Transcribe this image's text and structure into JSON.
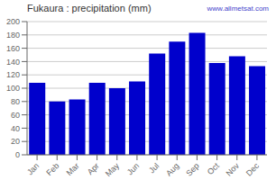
{
  "chart_data": {
    "type": "bar",
    "title": "Fukaura : precipitation (mm)",
    "annotation": "www.allmetsat.com",
    "categories": [
      "Jan",
      "Feb",
      "Mar",
      "Apr",
      "May",
      "Jun",
      "Jul",
      "Aug",
      "Sep",
      "Oct",
      "Nov",
      "Dec"
    ],
    "values": [
      108,
      80,
      83,
      108,
      100,
      110,
      152,
      170,
      183,
      138,
      148,
      133
    ],
    "color": "#0000CC",
    "ylim": [
      0,
      200
    ],
    "yticks": [
      0,
      20,
      40,
      60,
      80,
      100,
      120,
      140,
      160,
      180,
      200
    ],
    "grid": true
  }
}
